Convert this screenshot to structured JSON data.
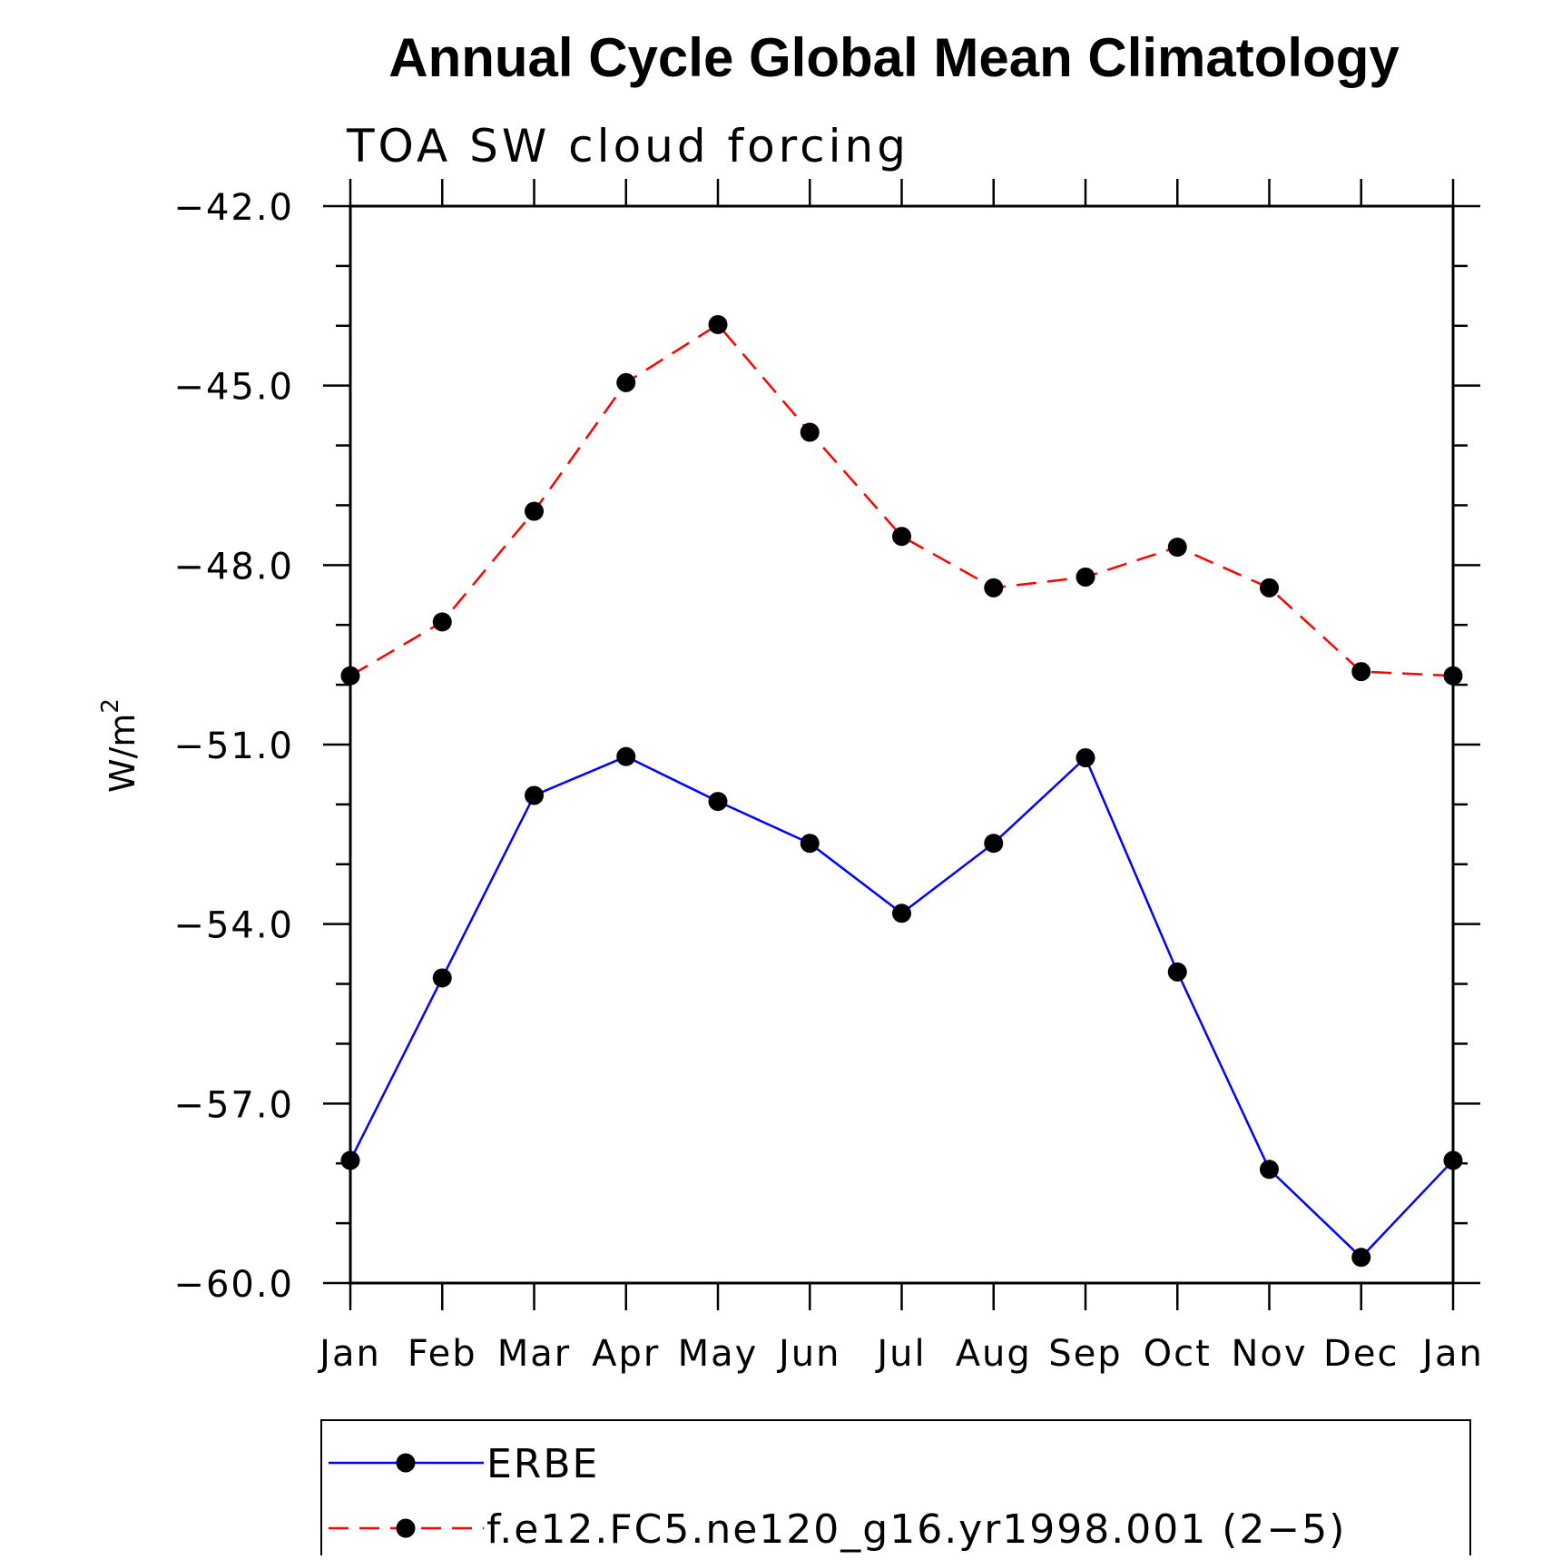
{
  "chart_data": {
    "type": "line",
    "title": "Annual Cycle Global Mean Climatology",
    "subtitle": "TOA SW cloud forcing",
    "ylabel": "W/m",
    "ylabel_sup": "2",
    "categories": [
      "Jan",
      "Feb",
      "Mar",
      "Apr",
      "May",
      "Jun",
      "Jul",
      "Aug",
      "Sep",
      "Oct",
      "Nov",
      "Dec",
      "Jan"
    ],
    "ylim": [
      -60.0,
      -42.0
    ],
    "yticks": [
      -42.0,
      -45.0,
      -48.0,
      -51.0,
      -54.0,
      -57.0,
      -60.0
    ],
    "ytick_labels": [
      "−42.0",
      "−45.0",
      "−48.0",
      "−51.0",
      "−54.0",
      "−57.0",
      "−60.0"
    ],
    "grid": false,
    "legend_position": "bottom",
    "series": [
      {
        "name": "ERBE",
        "color": "#0000ff",
        "dash": "solid",
        "marker": "circle",
        "values": [
          -57.95,
          -54.9,
          -51.85,
          -51.2,
          -51.95,
          -52.65,
          -53.82,
          -52.65,
          -51.22,
          -54.8,
          -58.1,
          -59.57,
          -57.95
        ]
      },
      {
        "name": "f.e12.FC5.ne120_g16.yr1998.001 (2−5)",
        "color": "#ff0000",
        "dash": "dashed",
        "marker": "circle",
        "values": [
          -49.85,
          -48.95,
          -47.1,
          -44.95,
          -43.98,
          -45.78,
          -47.52,
          -48.38,
          -48.2,
          -47.7,
          -48.38,
          -49.78,
          -49.85
        ]
      }
    ]
  }
}
